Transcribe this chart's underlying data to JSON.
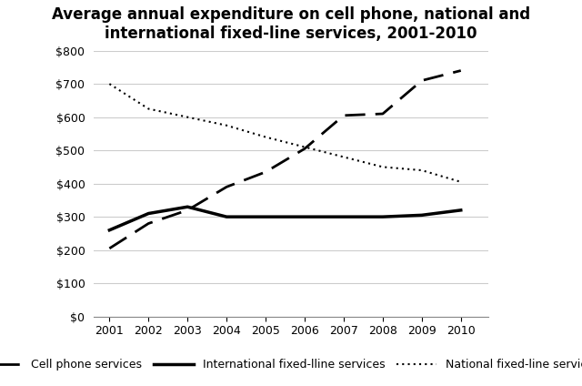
{
  "title": "Average annual expenditure on cell phone, national and\ninternational fixed-line services, 2001-2010",
  "years": [
    2001,
    2002,
    2003,
    2004,
    2005,
    2006,
    2007,
    2008,
    2009,
    2010
  ],
  "cell_phone": [
    205,
    280,
    320,
    390,
    435,
    505,
    605,
    610,
    710,
    740
  ],
  "intl_fixed": [
    260,
    310,
    330,
    300,
    300,
    300,
    300,
    300,
    305,
    320
  ],
  "natl_fixed": [
    700,
    625,
    600,
    575,
    540,
    510,
    480,
    450,
    440,
    405
  ],
  "ylim": [
    0,
    800
  ],
  "yticks": [
    0,
    100,
    200,
    300,
    400,
    500,
    600,
    700,
    800
  ],
  "background_color": "#ffffff",
  "grid_color": "#cccccc",
  "line_color": "#000000",
  "title_fontsize": 12,
  "legend_fontsize": 9,
  "tick_fontsize": 9,
  "cell_phone_label": "Cell phone services",
  "intl_fixed_label": "International fixed-lline services",
  "natl_fixed_label": "National fixed-line services"
}
